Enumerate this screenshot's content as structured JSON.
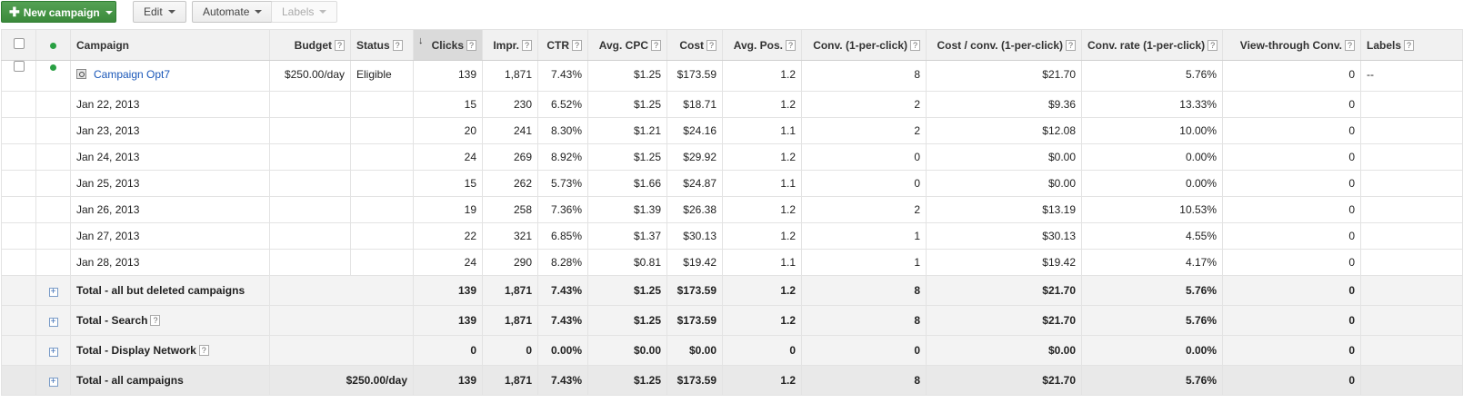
{
  "toolbar": {
    "new_campaign_label": "New campaign",
    "edit_label": "Edit",
    "automate_label": "Automate",
    "labels_label": "Labels"
  },
  "columns": {
    "campaign": "Campaign",
    "budget": "Budget",
    "status": "Status",
    "clicks": "Clicks",
    "impr": "Impr.",
    "ctr": "CTR",
    "avg_cpc": "Avg. CPC",
    "cost": "Cost",
    "avg_pos": "Avg. Pos.",
    "conv": "Conv. (1-per-click)",
    "cost_conv": "Cost / conv. (1-per-click)",
    "conv_rate": "Conv. rate (1-per-click)",
    "view_through": "View-through Conv.",
    "labels": "Labels"
  },
  "help_glyph": "?",
  "sort_glyph": "↓",
  "expand_glyph": "+",
  "campaign_row": {
    "name": "Campaign Opt7",
    "budget": "$250.00/day",
    "status": "Eligible",
    "clicks": "139",
    "impr": "1,871",
    "ctr": "7.43%",
    "avg_cpc": "$1.25",
    "cost": "$173.59",
    "avg_pos": "1.2",
    "conv": "8",
    "cost_conv": "$21.70",
    "conv_rate": "5.76%",
    "view_through": "0",
    "labels": "--",
    "status_color": "#29a043"
  },
  "days": [
    {
      "date": "Jan 22, 2013",
      "clicks": "15",
      "impr": "230",
      "ctr": "6.52%",
      "avg_cpc": "$1.25",
      "cost": "$18.71",
      "avg_pos": "1.2",
      "conv": "2",
      "cost_conv": "$9.36",
      "conv_rate": "13.33%",
      "view_through": "0"
    },
    {
      "date": "Jan 23, 2013",
      "clicks": "20",
      "impr": "241",
      "ctr": "8.30%",
      "avg_cpc": "$1.21",
      "cost": "$24.16",
      "avg_pos": "1.1",
      "conv": "2",
      "cost_conv": "$12.08",
      "conv_rate": "10.00%",
      "view_through": "0"
    },
    {
      "date": "Jan 24, 2013",
      "clicks": "24",
      "impr": "269",
      "ctr": "8.92%",
      "avg_cpc": "$1.25",
      "cost": "$29.92",
      "avg_pos": "1.2",
      "conv": "0",
      "cost_conv": "$0.00",
      "conv_rate": "0.00%",
      "view_through": "0"
    },
    {
      "date": "Jan 25, 2013",
      "clicks": "15",
      "impr": "262",
      "ctr": "5.73%",
      "avg_cpc": "$1.66",
      "cost": "$24.87",
      "avg_pos": "1.1",
      "conv": "0",
      "cost_conv": "$0.00",
      "conv_rate": "0.00%",
      "view_through": "0"
    },
    {
      "date": "Jan 26, 2013",
      "clicks": "19",
      "impr": "258",
      "ctr": "7.36%",
      "avg_cpc": "$1.39",
      "cost": "$26.38",
      "avg_pos": "1.2",
      "conv": "2",
      "cost_conv": "$13.19",
      "conv_rate": "10.53%",
      "view_through": "0"
    },
    {
      "date": "Jan 27, 2013",
      "clicks": "22",
      "impr": "321",
      "ctr": "6.85%",
      "avg_cpc": "$1.37",
      "cost": "$30.13",
      "avg_pos": "1.2",
      "conv": "1",
      "cost_conv": "$30.13",
      "conv_rate": "4.55%",
      "view_through": "0"
    },
    {
      "date": "Jan 28, 2013",
      "clicks": "24",
      "impr": "290",
      "ctr": "8.28%",
      "avg_cpc": "$0.81",
      "cost": "$19.42",
      "avg_pos": "1.1",
      "conv": "1",
      "cost_conv": "$19.42",
      "conv_rate": "4.17%",
      "view_through": "0"
    }
  ],
  "totals": [
    {
      "label": "Total - all but deleted campaigns",
      "has_help": false,
      "budget": "",
      "clicks": "139",
      "impr": "1,871",
      "ctr": "7.43%",
      "avg_cpc": "$1.25",
      "cost": "$173.59",
      "avg_pos": "1.2",
      "conv": "8",
      "cost_conv": "$21.70",
      "conv_rate": "5.76%",
      "view_through": "0"
    },
    {
      "label": "Total - Search",
      "has_help": true,
      "budget": "",
      "clicks": "139",
      "impr": "1,871",
      "ctr": "7.43%",
      "avg_cpc": "$1.25",
      "cost": "$173.59",
      "avg_pos": "1.2",
      "conv": "8",
      "cost_conv": "$21.70",
      "conv_rate": "5.76%",
      "view_through": "0"
    },
    {
      "label": "Total - Display Network",
      "has_help": true,
      "budget": "",
      "clicks": "0",
      "impr": "0",
      "ctr": "0.00%",
      "avg_cpc": "$0.00",
      "cost": "$0.00",
      "avg_pos": "0",
      "conv": "0",
      "cost_conv": "$0.00",
      "conv_rate": "0.00%",
      "view_through": "0"
    },
    {
      "label": "Total - all campaigns",
      "has_help": false,
      "budget": "$250.00/day",
      "clicks": "139",
      "impr": "1,871",
      "ctr": "7.43%",
      "avg_cpc": "$1.25",
      "cost": "$173.59",
      "avg_pos": "1.2",
      "conv": "8",
      "cost_conv": "$21.70",
      "conv_rate": "5.76%",
      "view_through": "0"
    }
  ]
}
